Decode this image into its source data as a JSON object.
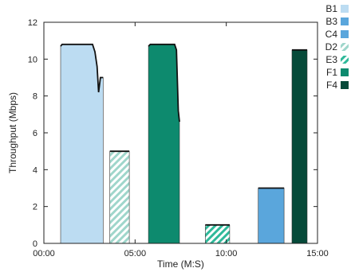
{
  "chart_data": {
    "type": "area",
    "xlabel": "Time (M:S)",
    "ylabel": "Throughput (Mbps)",
    "xlim": [
      0,
      900
    ],
    "ylim": [
      0,
      12
    ],
    "xticks": [
      {
        "value": 0,
        "label": "00:00"
      },
      {
        "value": 300,
        "label": "05:00"
      },
      {
        "value": 600,
        "label": "10:00"
      },
      {
        "value": 900,
        "label": "15:00"
      }
    ],
    "yticks": [
      0,
      2,
      4,
      6,
      8,
      10,
      12
    ],
    "grid": false,
    "legend_position": "right",
    "series": [
      {
        "name": "B1",
        "color": "#bcdcf2",
        "pattern": "solid",
        "start": 55,
        "end": 195,
        "x": [
          55,
          60,
          160,
          168,
          175,
          180,
          186,
          195
        ],
        "y": [
          10.7,
          10.8,
          10.8,
          10.4,
          9.6,
          8.2,
          9.0,
          9.0
        ]
      },
      {
        "name": "B3",
        "color": "#5aa6dc",
        "pattern": "solid",
        "start": 705,
        "end": 790,
        "x": [
          705,
          790
        ],
        "y": [
          3.0,
          3.0
        ]
      },
      {
        "name": "C4",
        "color": "#5aa6dc",
        "pattern": "solid",
        "start": 705,
        "end": 790,
        "x": [],
        "y": []
      },
      {
        "name": "D2",
        "color": "#9fd6cb",
        "pattern": "hatch",
        "start": 217,
        "end": 281,
        "x": [
          217,
          281
        ],
        "y": [
          5.0,
          5.0
        ]
      },
      {
        "name": "E3",
        "color": "#2fb99a",
        "pattern": "hatch",
        "start": 531,
        "end": 611,
        "x": [
          531,
          611
        ],
        "y": [
          1.0,
          1.0
        ]
      },
      {
        "name": "F1",
        "color": "#0d8a6e",
        "pattern": "solid",
        "start": 344,
        "end": 446,
        "x": [
          344,
          350,
          430,
          436,
          442,
          446
        ],
        "y": [
          10.7,
          10.8,
          10.8,
          10.5,
          7.2,
          6.6
        ]
      },
      {
        "name": "F4",
        "color": "#064a39",
        "pattern": "solid",
        "start": 816,
        "end": 866,
        "x": [
          816,
          866
        ],
        "y": [
          10.5,
          10.5
        ]
      }
    ]
  }
}
